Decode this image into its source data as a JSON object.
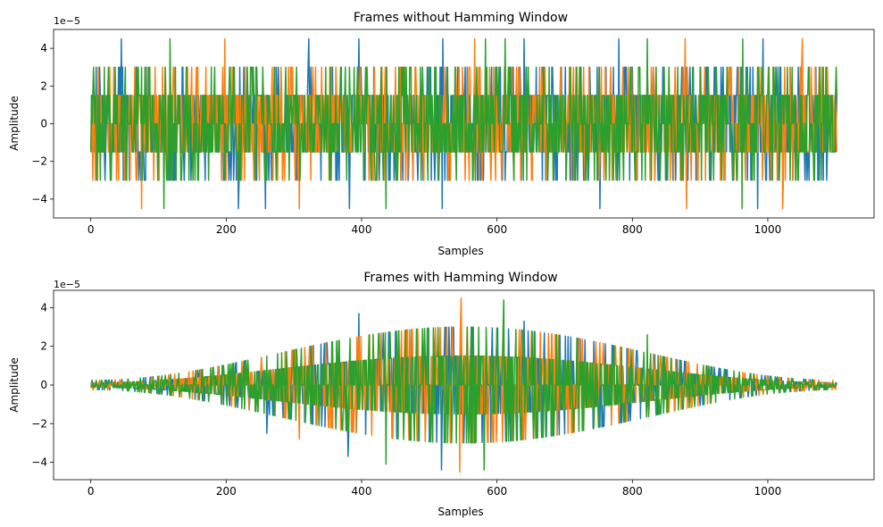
{
  "chart_data": [
    {
      "type": "line",
      "title": "Frames without Hamming Window",
      "xlabel": "Samples",
      "ylabel": "Amplitude",
      "offset_text": "1e−5",
      "xlim": [
        -55,
        1157
      ],
      "ylim": [
        -5.0,
        5.0
      ],
      "x_ticks": [
        0,
        200,
        400,
        600,
        800,
        1000
      ],
      "y_ticks": [
        -4,
        -2,
        0,
        2,
        4
      ],
      "n_samples": 1103,
      "windowed": false,
      "grid": false,
      "series": [
        {
          "color": "#1f77b4",
          "spikes": [
            [
              45,
              4.5
            ],
            [
              322,
              4.5
            ],
            [
              396,
              4.5
            ],
            [
              520,
              4.5
            ],
            [
              640,
              4.5
            ],
            [
              780,
              4.5
            ],
            [
              993,
              4.5
            ],
            [
              218,
              -4.5
            ],
            [
              258,
              -4.5
            ],
            [
              382,
              -4.5
            ],
            [
              519,
              -4.5
            ],
            [
              752,
              -4.5
            ],
            [
              985,
              -4.5
            ]
          ]
        },
        {
          "color": "#ff7f0e",
          "spikes": [
            [
              198,
              4.5
            ],
            [
              567,
              4.5
            ],
            [
              878,
              4.5
            ],
            [
              1051,
              4.5
            ],
            [
              75,
              -4.5
            ],
            [
              308,
              -4.5
            ],
            [
              880,
              -4.5
            ],
            [
              1022,
              -4.5
            ]
          ]
        },
        {
          "color": "#2ca02c",
          "spikes": [
            [
              117,
              4.5
            ],
            [
              436,
              4.5
            ],
            [
              583,
              4.5
            ],
            [
              612,
              4.5
            ],
            [
              822,
              4.5
            ],
            [
              963,
              4.5
            ],
            [
              108,
              -4.5
            ],
            [
              436,
              -4.5
            ],
            [
              962,
              -4.5
            ]
          ]
        }
      ]
    },
    {
      "type": "line",
      "title": "Frames with Hamming Window",
      "xlabel": "Samples",
      "ylabel": "Amplitude",
      "offset_text": "1e−5",
      "xlim": [
        -55,
        1157
      ],
      "ylim": [
        -4.9,
        4.9
      ],
      "x_ticks": [
        0,
        200,
        400,
        600,
        800,
        1000
      ],
      "y_ticks": [
        -4,
        -2,
        0,
        2,
        4
      ],
      "n_samples": 1103,
      "windowed": true,
      "grid": false,
      "series": [
        {
          "color": "#1f77b4",
          "spikes": [
            [
              396,
              3.7
            ],
            [
              518,
              -4.4
            ],
            [
              640,
              3.3
            ],
            [
              380,
              -3.7
            ],
            [
              260,
              -2.5
            ]
          ]
        },
        {
          "color": "#ff7f0e",
          "spikes": [
            [
              547,
              4.5
            ],
            [
              545,
              -4.5
            ],
            [
              308,
              -2.8
            ],
            [
              459,
              2.8
            ]
          ]
        },
        {
          "color": "#2ca02c",
          "spikes": [
            [
              436,
              4.1
            ],
            [
              610,
              4.4
            ],
            [
              581,
              -4.4
            ],
            [
              436,
              -4.1
            ],
            [
              822,
              2.6
            ]
          ]
        }
      ]
    }
  ]
}
